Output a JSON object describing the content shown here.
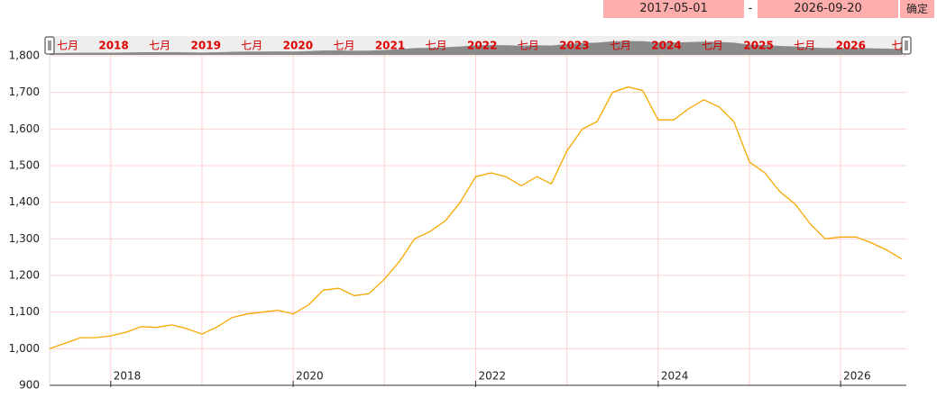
{
  "range": {
    "start": "2017-05-01",
    "separator": "-",
    "end": "2026-09-20",
    "button": "确定"
  },
  "navigator": {
    "labels": [
      "七月",
      "2018",
      "七月",
      "2019",
      "七月",
      "2020",
      "七月",
      "2021",
      "七月",
      "2022",
      "七月",
      "2023",
      "七月",
      "2024",
      "七月",
      "2025",
      "七月",
      "2026",
      "七"
    ]
  },
  "chart_data": {
    "type": "line",
    "color": "#f5a800",
    "grid": true,
    "xlim": [
      2017.33,
      2026.72
    ],
    "xticks": [
      2018,
      2020,
      2022,
      2024,
      2026
    ],
    "ylim": [
      900,
      1800
    ],
    "yticks": [
      900,
      {
        "value": 1000,
        "label": "1,000"
      },
      {
        "value": 1100,
        "label": "1,100"
      },
      {
        "value": 1200,
        "label": "1,200"
      },
      {
        "value": 1300,
        "label": "1,300"
      },
      {
        "value": 1400,
        "label": "1,400"
      },
      {
        "value": 1500,
        "label": "1,500"
      },
      {
        "value": 1600,
        "label": "1,600"
      },
      {
        "value": 1700,
        "label": "1,700"
      },
      {
        "value": 1800,
        "label": "1,800"
      }
    ],
    "x": [
      2017.33,
      2017.5,
      2017.67,
      2017.83,
      2018.0,
      2018.17,
      2018.33,
      2018.5,
      2018.67,
      2018.83,
      2019.0,
      2019.17,
      2019.33,
      2019.5,
      2019.67,
      2019.83,
      2020.0,
      2020.17,
      2020.33,
      2020.5,
      2020.67,
      2020.83,
      2021.0,
      2021.17,
      2021.33,
      2021.5,
      2021.67,
      2021.83,
      2022.0,
      2022.17,
      2022.33,
      2022.5,
      2022.67,
      2022.83,
      2023.0,
      2023.17,
      2023.33,
      2023.5,
      2023.67,
      2023.83,
      2024.0,
      2024.17,
      2024.33,
      2024.5,
      2024.67,
      2024.83,
      2025.0,
      2025.17,
      2025.33,
      2025.5,
      2025.67,
      2025.83,
      2026.0,
      2026.17,
      2026.33,
      2026.5,
      2026.67
    ],
    "values": [
      1000,
      1015,
      1030,
      1030,
      1035,
      1045,
      1060,
      1058,
      1065,
      1055,
      1040,
      1060,
      1085,
      1095,
      1100,
      1105,
      1095,
      1120,
      1160,
      1165,
      1145,
      1150,
      1190,
      1240,
      1300,
      1320,
      1350,
      1400,
      1470,
      1480,
      1470,
      1445,
      1470,
      1450,
      1540,
      1600,
      1620,
      1700,
      1715,
      1705,
      1625,
      1625,
      1655,
      1680,
      1660,
      1620,
      1510,
      1480,
      1430,
      1395,
      1340,
      1300,
      1305,
      1305,
      1290,
      1270,
      1245
    ]
  }
}
